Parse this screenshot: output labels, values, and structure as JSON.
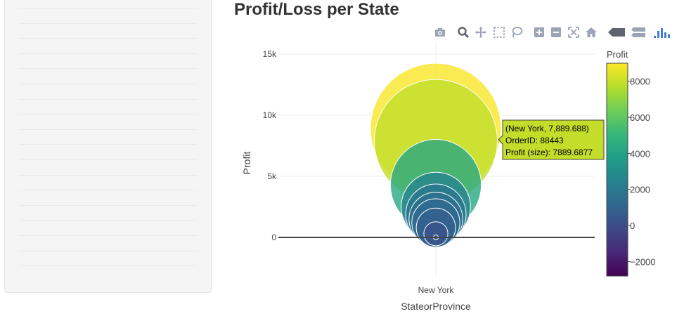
{
  "page": {
    "title": "Profit/Loss per State"
  },
  "modebar": {
    "icons": [
      "camera-icon",
      "zoom-icon",
      "pan-icon",
      "box-select-icon",
      "lasso-icon",
      "zoom-in-icon",
      "zoom-out-icon",
      "autoscale-icon",
      "reset-axes-icon",
      "hover-closest-icon",
      "hover-compare-icon",
      "plotly-logo-icon"
    ]
  },
  "chart_data": {
    "type": "scatter",
    "xlabel": "StateorProvince",
    "ylabel": "Profit",
    "categories": [
      "New York"
    ],
    "ylim": [
      -2800,
      16000
    ],
    "yticks": [
      0,
      5000,
      10000,
      15000
    ],
    "ytick_labels": [
      "0",
      "5k",
      "10k",
      "15k"
    ],
    "grid": true,
    "marker_size_var": "Profit",
    "colorbar": {
      "title": "Profit",
      "range": [
        -2800,
        9000
      ],
      "ticks": [
        -2000,
        0,
        2000,
        4000,
        6000,
        8000
      ],
      "tick_labels": [
        "−2000",
        "0",
        "2000",
        "4000",
        "6000",
        "8000"
      ],
      "colorscale": [
        "#440154",
        "#482878",
        "#3e4989",
        "#31688e",
        "#26828e",
        "#1f9e89",
        "#35b779",
        "#6ece58",
        "#b5de2b",
        "#fde725"
      ]
    },
    "points": [
      {
        "x": "New York",
        "y": 8900,
        "profit": 8900
      },
      {
        "x": "New York",
        "y": 7889.688,
        "profit": 7889.6877,
        "order_id": "88443"
      },
      {
        "x": "New York",
        "y": 4300,
        "profit": 4300
      },
      {
        "x": "New York",
        "y": 2500,
        "profit": 2500
      },
      {
        "x": "New York",
        "y": 1900,
        "profit": 1900
      },
      {
        "x": "New York",
        "y": 1500,
        "profit": 1500
      },
      {
        "x": "New York",
        "y": 1200,
        "profit": 1200
      },
      {
        "x": "New York",
        "y": 800,
        "profit": 800
      },
      {
        "x": "New York",
        "y": 300,
        "profit": 300
      },
      {
        "x": "New York",
        "y": 0,
        "profit": 0
      }
    ],
    "hover": {
      "line1": "(New York, 7,889.688)",
      "line2": "OrderID: 88443",
      "line3": "Profit (size): 7889.6877"
    }
  }
}
